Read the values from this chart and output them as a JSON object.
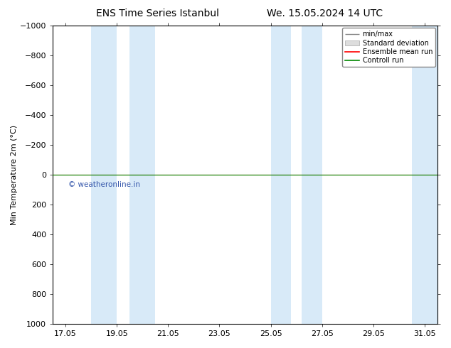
{
  "title_left": "ENS Time Series Istanbul",
  "title_right": "We. 15.05.2024 14 UTC",
  "ylabel": "Min Temperature 2m (°C)",
  "ylim_bottom": -1000,
  "ylim_top": 1000,
  "yticks": [
    -1000,
    -800,
    -600,
    -400,
    -200,
    0,
    200,
    400,
    600,
    800,
    1000
  ],
  "x_tick_labels": [
    "17.05",
    "19.05",
    "21.05",
    "23.05",
    "25.05",
    "27.05",
    "29.05",
    "31.05"
  ],
  "x_tick_positions": [
    17,
    19,
    21,
    23,
    25,
    27,
    29,
    31
  ],
  "xlim": [
    16.5,
    31.5
  ],
  "blue_bands": [
    [
      18.0,
      19.0
    ],
    [
      19.5,
      20.5
    ],
    [
      25.0,
      25.8
    ],
    [
      26.2,
      27.0
    ],
    [
      30.5,
      31.5
    ]
  ],
  "green_line_y": 0,
  "red_line_y": 0,
  "copyright_text": "© weatheronline.in",
  "copyright_color": "#3355aa",
  "copyright_x": 17.0,
  "copyright_y": 40,
  "legend_items": [
    "min/max",
    "Standard deviation",
    "Ensemble mean run",
    "Controll run"
  ],
  "legend_colors_line": [
    "#888888",
    "#cccccc",
    "#ff0000",
    "#008800"
  ],
  "background_color": "#ffffff",
  "plot_bg_color": "#ffffff",
  "band_color": "#d8eaf8",
  "title_fontsize": 10,
  "tick_fontsize": 8,
  "ylabel_fontsize": 8
}
